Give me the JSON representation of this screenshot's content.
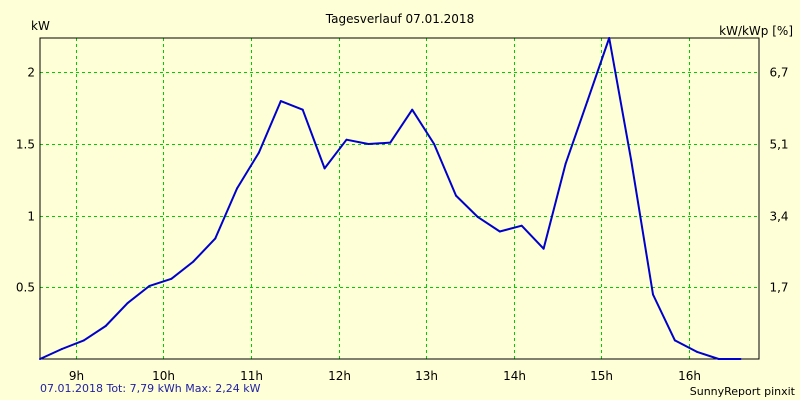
{
  "chart_data": {
    "type": "line",
    "title": "Tagesverlauf 07.01.2018",
    "ylabel_left": "kW",
    "ylabel_right": "kW/kWp [%]",
    "footer_left": "07.01.2018 Tot: 7,79 kWh Max: 2,24 kW",
    "footer_right": "SunnyReport pinxit",
    "x_range_hours": [
      8.59,
      16.8
    ],
    "ylim": [
      0,
      2.24
    ],
    "x_ticks": [
      {
        "hour": 9,
        "label": "9h"
      },
      {
        "hour": 10,
        "label": "10h"
      },
      {
        "hour": 11,
        "label": "11h"
      },
      {
        "hour": 12,
        "label": "12h"
      },
      {
        "hour": 13,
        "label": "13h"
      },
      {
        "hour": 14,
        "label": "14h"
      },
      {
        "hour": 15,
        "label": "15h"
      },
      {
        "hour": 16,
        "label": "16h"
      }
    ],
    "y_ticks_left": [
      {
        "value": 0.5,
        "label": "0.5"
      },
      {
        "value": 1,
        "label": "1"
      },
      {
        "value": 1.5,
        "label": "1.5"
      },
      {
        "value": 2,
        "label": "2"
      }
    ],
    "y_ticks_right": [
      {
        "value": 0.5,
        "label": "1,7"
      },
      {
        "value": 1,
        "label": "3,4"
      },
      {
        "value": 1.5,
        "label": "5,1"
      },
      {
        "value": 2,
        "label": "6,7"
      }
    ],
    "grid": true,
    "series": [
      {
        "name": "kW",
        "color": "#0000cc",
        "x": [
          8.59,
          8.84,
          9.09,
          9.34,
          9.59,
          9.84,
          10.09,
          10.34,
          10.59,
          10.84,
          11.09,
          11.34,
          11.59,
          11.84,
          12.09,
          12.34,
          12.59,
          12.84,
          13.09,
          13.34,
          13.59,
          13.84,
          14.09,
          14.34,
          14.59,
          14.84,
          15.09,
          15.34,
          15.59,
          15.84,
          16.09,
          16.34,
          16.59
        ],
        "values": [
          0.0,
          0.07,
          0.13,
          0.23,
          0.39,
          0.51,
          0.56,
          0.68,
          0.84,
          1.19,
          1.44,
          1.8,
          1.74,
          1.33,
          1.53,
          1.5,
          1.51,
          1.74,
          1.5,
          1.14,
          0.99,
          0.89,
          0.93,
          0.77,
          1.36,
          1.8,
          2.24,
          1.39,
          0.45,
          0.13,
          0.05,
          0.0,
          0.0
        ]
      }
    ]
  }
}
